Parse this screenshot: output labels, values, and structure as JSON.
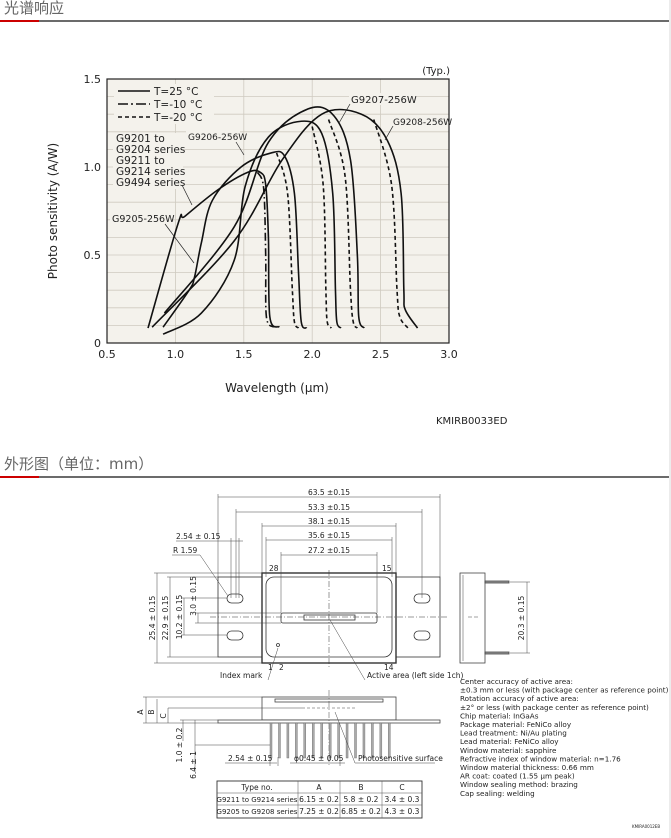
{
  "sections": {
    "spectral_title": "光谱响应",
    "outline_title": "外形图（单位：mm）"
  },
  "colors": {
    "accent": "#cc0000",
    "rule": "#6b6b6b",
    "plot_bg": "#f4f2ec",
    "grid": "#cfcac0"
  },
  "chart_data": {
    "type": "line",
    "xlabel": "Wavelength (μm)",
    "ylabel": "Photo sensitivity (A/W)",
    "xlim": [
      0.5,
      3.0
    ],
    "ylim": [
      0,
      1.5
    ],
    "xticks": [
      "0.5",
      "1.0",
      "1.5",
      "2.0",
      "2.5",
      "3.0"
    ],
    "yticks": [
      "0",
      "0.5",
      "1.0",
      "1.5"
    ],
    "grid": true,
    "note": "(Typ.)",
    "figure_code": "KMIRB0033ED",
    "legend": [
      {
        "label": "T=25 °C",
        "style": "solid"
      },
      {
        "label": "T=-10 °C",
        "style": "dashdot"
      },
      {
        "label": "T=-20 °C",
        "style": "dashed"
      }
    ],
    "annotations": {
      "g9201": [
        "G9201 to",
        "G9204 series",
        "G9211 to",
        "G9214 series",
        "G9494 series"
      ],
      "g9205": "G9205-256W",
      "g9206": "G9206-256W",
      "g9207": "G9207-256W",
      "g9208": "G9208-256W"
    },
    "series": [
      {
        "style": "solid",
        "points": [
          [
            0.8,
            0.085
          ],
          [
            1.02,
            0.68
          ],
          [
            1.07,
            0.72
          ],
          [
            1.31,
            0.87
          ],
          [
            1.53,
            0.97
          ],
          [
            1.62,
            0.97
          ],
          [
            1.66,
            0.9
          ],
          [
            1.68,
            0.6
          ],
          [
            1.69,
            0.15
          ],
          [
            1.76,
            0.09
          ]
        ]
      },
      {
        "style": "dashdot",
        "points": [
          [
            1.6,
            0.97
          ],
          [
            1.645,
            0.88
          ],
          [
            1.66,
            0.5
          ],
          [
            1.665,
            0.15
          ],
          [
            1.72,
            0.09
          ]
        ]
      },
      {
        "style": "solid",
        "points": [
          [
            0.91,
            0.09
          ],
          [
            1.1,
            0.3
          ],
          [
            1.14,
            0.375
          ],
          [
            1.19,
            0.57
          ],
          [
            1.27,
            0.81
          ],
          [
            1.48,
            1.0
          ],
          [
            1.7,
            1.08
          ],
          [
            1.8,
            1.06
          ],
          [
            1.87,
            0.85
          ],
          [
            1.9,
            0.4
          ],
          [
            1.92,
            0.12
          ],
          [
            1.96,
            0.085
          ]
        ]
      },
      {
        "style": "dashed",
        "points": [
          [
            1.74,
            1.08
          ],
          [
            1.82,
            0.85
          ],
          [
            1.855,
            0.3
          ],
          [
            1.87,
            0.12
          ],
          [
            1.9,
            0.085
          ]
        ]
      },
      {
        "style": "solid",
        "points": [
          [
            0.91,
            0.05
          ],
          [
            1.19,
            0.17
          ],
          [
            1.43,
            0.47
          ],
          [
            1.51,
            0.89
          ],
          [
            1.68,
            1.17
          ],
          [
            1.92,
            1.26
          ],
          [
            2.07,
            1.19
          ],
          [
            2.15,
            0.85
          ],
          [
            2.17,
            0.3
          ],
          [
            2.18,
            0.12
          ],
          [
            2.21,
            0.085
          ]
        ]
      },
      {
        "style": "dashed",
        "points": [
          [
            2.0,
            1.23
          ],
          [
            2.08,
            0.9
          ],
          [
            2.1,
            0.3
          ],
          [
            2.11,
            0.12
          ],
          [
            2.14,
            0.085
          ]
        ]
      },
      {
        "style": "solid",
        "points": [
          [
            0.92,
            0.17
          ],
          [
            1.43,
            0.66
          ],
          [
            1.68,
            1.14
          ],
          [
            1.97,
            1.33
          ],
          [
            2.16,
            1.29
          ],
          [
            2.28,
            1.04
          ],
          [
            2.33,
            0.5
          ],
          [
            2.34,
            0.15
          ],
          [
            2.38,
            0.085
          ]
        ]
      },
      {
        "style": "dashed",
        "points": [
          [
            2.12,
            1.27
          ],
          [
            2.24,
            0.95
          ],
          [
            2.28,
            0.3
          ],
          [
            2.3,
            0.12
          ],
          [
            2.33,
            0.085
          ]
        ]
      },
      {
        "style": "solid",
        "points": [
          [
            0.83,
            0.09
          ],
          [
            1.43,
            0.58
          ],
          [
            1.78,
            1.04
          ],
          [
            2.07,
            1.3
          ],
          [
            2.36,
            1.3
          ],
          [
            2.55,
            1.15
          ],
          [
            2.65,
            0.85
          ],
          [
            2.67,
            0.3
          ],
          [
            2.68,
            0.19
          ],
          [
            2.77,
            0.085
          ]
        ]
      },
      {
        "style": "dashed",
        "points": [
          [
            2.45,
            1.27
          ],
          [
            2.58,
            0.9
          ],
          [
            2.62,
            0.3
          ],
          [
            2.64,
            0.15
          ],
          [
            2.7,
            0.085
          ]
        ]
      }
    ]
  },
  "drawing": {
    "dims_top": [
      "63.5 ±0.15",
      "53.3 ±0.15",
      "38.1 ±0.15",
      "35.6 ±0.15",
      "27.2 ±0.15"
    ],
    "pitch_top": "2.54 ± 0.15",
    "radius": "R 1.59",
    "dims_left": [
      "25.4 ± 0.15",
      "22.9 ± 0.15",
      "10.2 ± 0.15",
      "3.0 ± 0.15"
    ],
    "pins": {
      "p28": "28",
      "p15": "15",
      "p1": "1",
      "p2": "2",
      "p14": "14"
    },
    "index_mark": "Index mark",
    "active_area": "Active area (left side 1ch)",
    "side_dim": "20.3 ± 0.15",
    "bottom_letters": [
      "A",
      "B",
      "C"
    ],
    "bottom_dims": [
      "1.0 ± 0.2",
      "6.4 ± 1"
    ],
    "pin_pitch": "2.54 ± 0.15",
    "pin_diameter": "φ0.45 ± 0.05",
    "photosensitive": "Photosensitive surface",
    "figure_code": "KMIRA0012EB"
  },
  "table": {
    "headers": [
      "Type no.",
      "A",
      "B",
      "C"
    ],
    "rows": [
      [
        "G9211 to G9214 series",
        "6.15 ± 0.2",
        "5.8 ± 0.2",
        "3.4 ± 0.3"
      ],
      [
        "G9205 to G9208 series",
        "7.25 ± 0.2",
        "6.85 ± 0.2",
        "4.3 ± 0.3"
      ]
    ]
  },
  "notes": [
    "Center accuracy of active area:",
    "±0.3 mm or less (with package center as reference point)",
    "Rotation accuracy of active area:",
    "±2° or less (with package center as reference point)",
    "Chip material: InGaAs",
    "Package material: FeNiCo alloy",
    "Lead treatment: Ni/Au plating",
    "Lead material: FeNiCo alloy",
    "Window material: sapphire",
    "Refractive index of window material: n=1.76",
    "Window material thickness: 0.66 mm",
    "AR coat: coated (1.55 μm peak)",
    "Window sealing method: brazing",
    "Cap sealing: welding"
  ]
}
